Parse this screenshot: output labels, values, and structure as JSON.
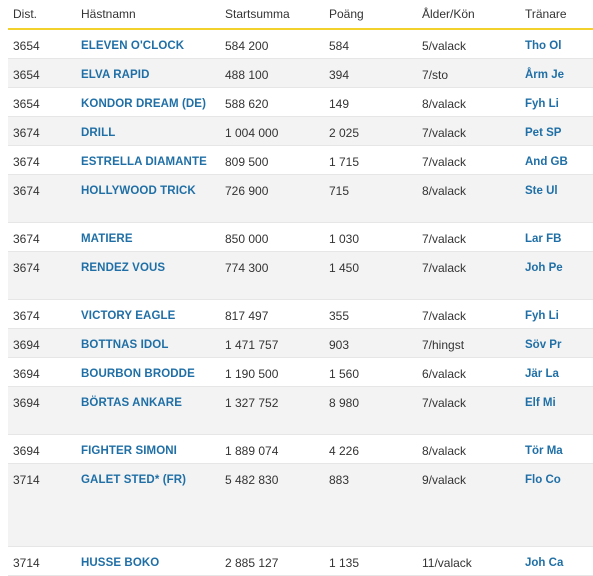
{
  "headers": {
    "dist": "Dist.",
    "name": "Hästnamn",
    "sum": "Startsumma",
    "points": "Poäng",
    "age": "Ålder/Kön",
    "trainer": "Tränare"
  },
  "rows": [
    {
      "dist": "3654",
      "name": "ELEVEN O'CLOCK",
      "sum": "584 200",
      "points": "584",
      "age": "5/valack",
      "trainer": "Tho Ol"
    },
    {
      "dist": "3654",
      "name": "ELVA RAPID",
      "sum": "488 100",
      "points": "394",
      "age": "7/sto",
      "trainer": "Årm Je"
    },
    {
      "dist": "3654",
      "name": "KONDOR DREAM (DE)",
      "sum": "588 620",
      "points": "149",
      "age": "8/valack",
      "trainer": "Fyh Li"
    },
    {
      "dist": "3674",
      "name": "DRILL",
      "sum": "1 004 000",
      "points": "2 025",
      "age": "7/valack",
      "trainer": "Pet SP"
    },
    {
      "dist": "3674",
      "name": "ESTRELLA DIAMANTE",
      "sum": "809 500",
      "points": "1 715",
      "age": "7/valack",
      "trainer": "And GB"
    },
    {
      "dist": "3674",
      "name": "HOLLYWOOD TRICK",
      "sum": "726 900",
      "points": "715",
      "age": "8/valack",
      "trainer": "Ste Ul"
    },
    {
      "dist": "3674",
      "name": "MATIERE",
      "sum": "850 000",
      "points": "1 030",
      "age": "7/valack",
      "trainer": "Lar FB"
    },
    {
      "dist": "3674",
      "name": "RENDEZ VOUS",
      "sum": "774 300",
      "points": "1 450",
      "age": "7/valack",
      "trainer": "Joh Pe"
    },
    {
      "dist": "3674",
      "name": "VICTORY EAGLE",
      "sum": "817 497",
      "points": "355",
      "age": "7/valack",
      "trainer": "Fyh Li"
    },
    {
      "dist": "3694",
      "name": "BOTTNAS IDOL",
      "sum": "1 471 757",
      "points": "903",
      "age": "7/hingst",
      "trainer": "Söv Pr"
    },
    {
      "dist": "3694",
      "name": "BOURBON BRODDE",
      "sum": "1 190 500",
      "points": "1 560",
      "age": "6/valack",
      "trainer": "Jär La"
    },
    {
      "dist": "3694",
      "name": "BÖRTAS ANKARE",
      "sum": "1 327 752",
      "points": "8 980",
      "age": "7/valack",
      "trainer": "Elf Mi"
    },
    {
      "dist": "3694",
      "name": "FIGHTER SIMONI",
      "sum": "1 889 074",
      "points": "4 226",
      "age": "8/valack",
      "trainer": "Tör Ma"
    },
    {
      "dist": "3714",
      "name": "GALET STED* (FR)",
      "sum": "5 482 830",
      "points": "883",
      "age": "9/valack",
      "trainer": "Flo Co"
    },
    {
      "dist": "3714",
      "name": "HUSSE BOKO",
      "sum": "2 885 127",
      "points": "1 135",
      "age": "11/valack",
      "trainer": "Joh Ca"
    }
  ]
}
